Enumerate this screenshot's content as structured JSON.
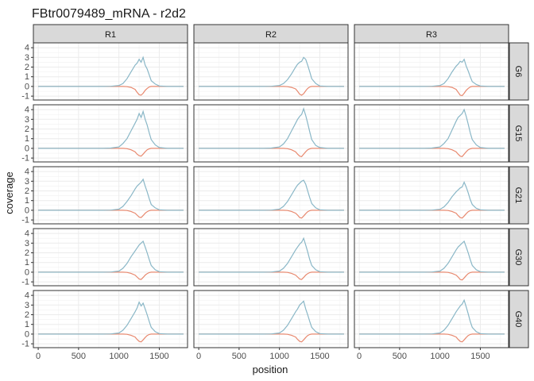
{
  "chart_data": {
    "type": "line",
    "title": "FBtr0079489_mRNA - r2d2",
    "xlabel": "position",
    "ylabel": "coverage",
    "columns": [
      "R1",
      "R2",
      "R3"
    ],
    "rows": [
      "G6",
      "G15",
      "G21",
      "G30",
      "G40"
    ],
    "xlim": [
      -60,
      1850
    ],
    "ylim": [
      -1.4,
      4.5
    ],
    "x_ticks": [
      0,
      500,
      1000,
      1500
    ],
    "y_ticks": [
      -1,
      0,
      1,
      2,
      3,
      4
    ],
    "x": [
      0,
      100,
      200,
      300,
      400,
      500,
      600,
      700,
      800,
      900,
      1000,
      1050,
      1100,
      1150,
      1200,
      1225,
      1250,
      1275,
      1300,
      1325,
      1350,
      1375,
      1400,
      1450,
      1500,
      1600,
      1700,
      1800
    ],
    "grid": true,
    "series": [
      {
        "color": "#8ab7c7"
      },
      {
        "color": "#e8896f"
      }
    ],
    "panels": [
      {
        "column": "R1",
        "row": "G6",
        "plus": [
          0,
          0,
          0,
          0,
          0,
          0,
          0,
          0,
          0,
          0.02,
          0.1,
          0.3,
          0.8,
          1.5,
          2.2,
          2.4,
          2.8,
          2.5,
          3.0,
          2.2,
          1.8,
          1.2,
          0.6,
          0.25,
          0.05,
          0,
          0,
          0
        ],
        "minus": [
          0,
          0,
          0,
          0,
          0,
          0,
          0,
          0,
          0,
          0,
          0,
          0,
          -0.02,
          -0.1,
          -0.3,
          -0.6,
          -0.85,
          -0.9,
          -0.7,
          -0.4,
          -0.2,
          -0.05,
          0,
          0,
          0,
          0,
          0,
          0
        ]
      },
      {
        "column": "R2",
        "row": "G6",
        "plus": [
          0,
          0,
          0,
          0,
          0,
          0,
          0,
          0,
          0,
          0.02,
          0.1,
          0.3,
          0.7,
          1.3,
          2.0,
          2.3,
          2.5,
          2.6,
          3.0,
          2.8,
          2.2,
          1.5,
          0.8,
          0.3,
          0.05,
          0,
          0,
          0
        ],
        "minus": [
          0,
          0,
          0,
          0,
          0,
          0,
          0,
          0,
          0,
          0,
          0,
          0,
          -0.02,
          -0.1,
          -0.25,
          -0.5,
          -0.8,
          -0.9,
          -0.75,
          -0.45,
          -0.2,
          -0.05,
          0,
          0,
          0,
          0,
          0,
          0
        ]
      },
      {
        "column": "R3",
        "row": "G6",
        "plus": [
          0,
          0,
          0,
          0,
          0,
          0,
          0,
          0,
          0,
          0.02,
          0.1,
          0.3,
          0.8,
          1.5,
          2.1,
          2.3,
          2.6,
          2.5,
          2.8,
          2.1,
          1.6,
          1.0,
          0.5,
          0.2,
          0.05,
          0,
          0,
          0
        ],
        "minus": [
          0,
          0,
          0,
          0,
          0,
          0,
          0,
          0,
          0,
          0,
          0,
          0,
          -0.02,
          -0.1,
          -0.3,
          -0.6,
          -0.9,
          -0.95,
          -0.7,
          -0.4,
          -0.2,
          -0.05,
          0,
          0,
          0,
          0,
          0,
          0
        ]
      },
      {
        "column": "R1",
        "row": "G15",
        "plus": [
          0,
          0,
          0,
          0,
          0,
          0,
          0,
          0,
          0,
          0.03,
          0.15,
          0.5,
          1.0,
          1.8,
          2.6,
          3.0,
          3.6,
          3.2,
          3.8,
          3.0,
          2.4,
          1.6,
          0.9,
          0.35,
          0.08,
          0,
          0,
          0
        ],
        "minus": [
          0,
          0,
          0,
          0,
          0,
          0,
          0,
          0,
          0,
          0,
          0,
          0,
          -0.03,
          -0.15,
          -0.35,
          -0.6,
          -0.75,
          -0.8,
          -0.6,
          -0.35,
          -0.15,
          -0.05,
          0,
          0,
          0,
          0,
          0,
          0
        ]
      },
      {
        "column": "R2",
        "row": "G15",
        "plus": [
          0,
          0,
          0,
          0,
          0,
          0,
          0,
          0,
          0,
          0.03,
          0.15,
          0.45,
          1.0,
          1.8,
          2.6,
          3.0,
          3.3,
          3.5,
          4.1,
          3.4,
          2.6,
          1.7,
          0.9,
          0.3,
          0.08,
          0,
          0,
          0
        ],
        "minus": [
          0,
          0,
          0,
          0,
          0,
          0,
          0,
          0,
          0,
          0,
          0,
          0,
          -0.03,
          -0.15,
          -0.35,
          -0.6,
          -0.8,
          -0.85,
          -0.6,
          -0.35,
          -0.15,
          -0.05,
          0,
          0,
          0,
          0,
          0,
          0
        ]
      },
      {
        "column": "R3",
        "row": "G15",
        "plus": [
          0,
          0,
          0,
          0,
          0,
          0,
          0,
          0,
          0,
          0.03,
          0.15,
          0.5,
          1.0,
          1.9,
          2.8,
          3.2,
          3.4,
          3.6,
          4.0,
          3.3,
          2.5,
          1.6,
          0.9,
          0.35,
          0.08,
          0,
          0,
          0
        ],
        "minus": [
          0,
          0,
          0,
          0,
          0,
          0,
          0,
          0,
          0,
          0,
          0,
          0,
          -0.03,
          -0.15,
          -0.35,
          -0.6,
          -0.8,
          -0.85,
          -0.6,
          -0.35,
          -0.15,
          -0.05,
          0,
          0,
          0,
          0,
          0,
          0
        ]
      },
      {
        "column": "R1",
        "row": "G21",
        "plus": [
          0,
          0,
          0,
          0,
          0,
          0,
          0,
          0,
          0,
          0.02,
          0.12,
          0.4,
          0.9,
          1.5,
          2.2,
          2.5,
          2.7,
          2.9,
          3.2,
          2.5,
          1.9,
          1.2,
          0.6,
          0.25,
          0.05,
          0,
          0,
          0
        ],
        "minus": [
          0,
          0,
          0,
          0,
          0,
          0,
          0,
          0,
          0,
          0,
          0,
          0,
          -0.02,
          -0.12,
          -0.3,
          -0.5,
          -0.7,
          -0.75,
          -0.55,
          -0.3,
          -0.15,
          -0.04,
          0,
          0,
          0,
          0,
          0,
          0
        ]
      },
      {
        "column": "R2",
        "row": "G21",
        "plus": [
          0,
          0,
          0,
          0,
          0,
          0,
          0,
          0,
          0,
          0.02,
          0.12,
          0.4,
          0.9,
          1.6,
          2.3,
          2.6,
          2.8,
          3.0,
          3.1,
          2.7,
          2.0,
          1.3,
          0.7,
          0.25,
          0.05,
          0,
          0,
          0
        ],
        "minus": [
          0,
          0,
          0,
          0,
          0,
          0,
          0,
          0,
          0,
          0,
          0,
          0,
          -0.02,
          -0.12,
          -0.3,
          -0.5,
          -0.75,
          -0.8,
          -0.6,
          -0.35,
          -0.15,
          -0.04,
          0,
          0,
          0,
          0,
          0,
          0
        ]
      },
      {
        "column": "R3",
        "row": "G21",
        "plus": [
          0,
          0,
          0,
          0,
          0,
          0,
          0,
          0,
          0,
          0.02,
          0.1,
          0.35,
          0.8,
          1.4,
          1.9,
          2.1,
          2.3,
          2.4,
          2.9,
          2.4,
          1.8,
          1.1,
          0.6,
          0.2,
          0.05,
          0,
          0,
          0
        ],
        "minus": [
          0,
          0,
          0,
          0,
          0,
          0,
          0,
          0,
          0,
          0,
          0,
          0,
          -0.02,
          -0.12,
          -0.3,
          -0.55,
          -0.75,
          -0.8,
          -0.6,
          -0.35,
          -0.15,
          -0.04,
          0,
          0,
          0,
          0,
          0,
          0
        ]
      },
      {
        "column": "R1",
        "row": "G30",
        "plus": [
          0,
          0,
          0,
          0,
          0,
          0,
          0,
          0,
          0,
          0.02,
          0.12,
          0.4,
          0.9,
          1.6,
          2.2,
          2.5,
          2.8,
          3.0,
          3.2,
          2.6,
          2.0,
          1.3,
          0.7,
          0.25,
          0.05,
          0,
          0,
          0
        ],
        "minus": [
          0,
          0,
          0,
          0,
          0,
          0,
          0,
          0,
          0,
          0,
          0,
          0,
          -0.02,
          -0.12,
          -0.3,
          -0.5,
          -0.7,
          -0.75,
          -0.55,
          -0.3,
          -0.15,
          -0.04,
          0,
          0,
          0,
          0,
          0,
          0
        ]
      },
      {
        "column": "R2",
        "row": "G30",
        "plus": [
          0,
          0,
          0,
          0,
          0,
          0,
          0,
          0,
          0,
          0.02,
          0.12,
          0.4,
          0.9,
          1.6,
          2.3,
          2.6,
          2.9,
          3.1,
          3.5,
          2.8,
          2.1,
          1.3,
          0.7,
          0.25,
          0.05,
          0,
          0,
          0
        ],
        "minus": [
          0,
          0,
          0,
          0,
          0,
          0,
          0,
          0,
          0,
          0,
          0,
          0,
          -0.02,
          -0.12,
          -0.3,
          -0.5,
          -0.7,
          -0.75,
          -0.55,
          -0.3,
          -0.15,
          -0.04,
          0,
          0,
          0,
          0,
          0,
          0
        ]
      },
      {
        "column": "R3",
        "row": "G30",
        "plus": [
          0,
          0,
          0,
          0,
          0,
          0,
          0,
          0,
          0,
          0.02,
          0.12,
          0.4,
          0.9,
          1.6,
          2.3,
          2.6,
          2.8,
          3.0,
          3.2,
          2.6,
          2.0,
          1.3,
          0.7,
          0.25,
          0.05,
          0,
          0,
          0
        ],
        "minus": [
          0,
          0,
          0,
          0,
          0,
          0,
          0,
          0,
          0,
          0,
          0,
          0,
          -0.02,
          -0.12,
          -0.3,
          -0.5,
          -0.75,
          -0.8,
          -0.6,
          -0.35,
          -0.15,
          -0.04,
          0,
          0,
          0,
          0,
          0,
          0
        ]
      },
      {
        "column": "R1",
        "row": "G40",
        "plus": [
          0,
          0,
          0,
          0,
          0,
          0,
          0,
          0,
          0,
          0.02,
          0.12,
          0.4,
          0.9,
          1.6,
          2.3,
          2.7,
          3.3,
          2.9,
          3.2,
          2.6,
          2.0,
          1.3,
          0.7,
          0.25,
          0.05,
          0,
          0,
          0
        ],
        "minus": [
          0,
          0,
          0,
          0,
          0,
          0,
          0,
          0,
          0,
          0,
          0,
          0,
          -0.02,
          -0.12,
          -0.3,
          -0.55,
          -0.75,
          -0.8,
          -0.6,
          -0.35,
          -0.15,
          -0.04,
          0,
          0,
          0,
          0,
          0,
          0
        ]
      },
      {
        "column": "R2",
        "row": "G40",
        "plus": [
          0,
          0,
          0,
          0,
          0,
          0,
          0,
          0,
          0,
          0.02,
          0.12,
          0.4,
          0.9,
          1.6,
          2.3,
          2.6,
          3.0,
          3.2,
          3.4,
          2.6,
          2.0,
          1.3,
          0.7,
          0.25,
          0.05,
          0,
          0,
          0
        ],
        "minus": [
          0,
          0,
          0,
          0,
          0,
          0,
          0,
          0,
          0,
          0,
          0,
          0,
          -0.02,
          -0.12,
          -0.3,
          -0.55,
          -0.75,
          -0.8,
          -0.6,
          -0.35,
          -0.15,
          -0.04,
          0,
          0,
          0,
          0,
          0,
          0
        ]
      },
      {
        "column": "R3",
        "row": "G40",
        "plus": [
          0,
          0,
          0,
          0,
          0,
          0,
          0,
          0,
          0,
          0.02,
          0.12,
          0.4,
          0.9,
          1.6,
          2.3,
          2.6,
          2.9,
          3.1,
          3.5,
          2.8,
          2.1,
          1.3,
          0.7,
          0.25,
          0.05,
          0,
          0,
          0
        ],
        "minus": [
          0,
          0,
          0,
          0,
          0,
          0,
          0,
          0,
          0,
          0,
          0,
          0,
          -0.02,
          -0.12,
          -0.3,
          -0.55,
          -0.75,
          -0.8,
          -0.6,
          -0.35,
          -0.15,
          -0.04,
          0,
          0,
          0,
          0,
          0,
          0
        ]
      }
    ]
  }
}
